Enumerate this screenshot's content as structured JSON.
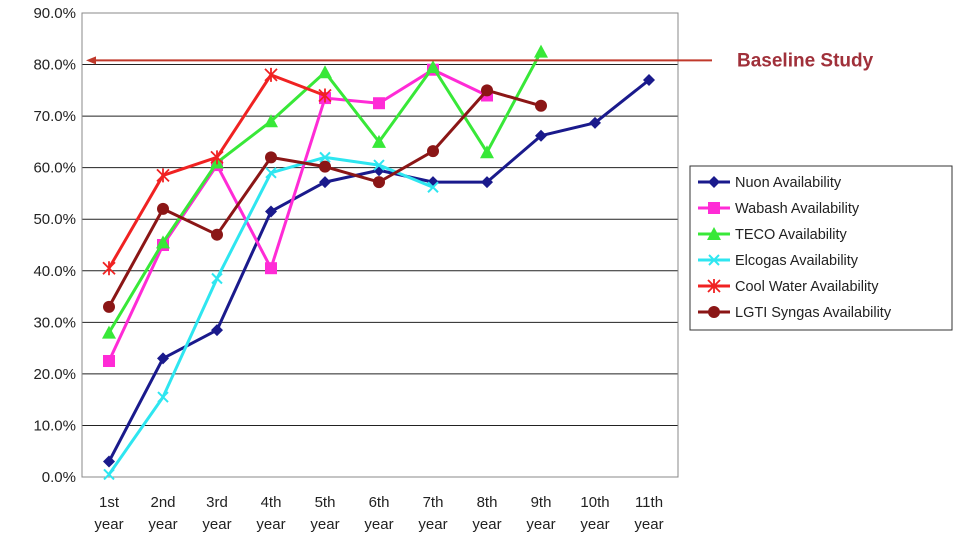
{
  "chart_data": {
    "type": "line",
    "categories": [
      "1st year",
      "2nd year",
      "3rd year",
      "4th year",
      "5th year",
      "6th year",
      "7th year",
      "8th year",
      "9th year",
      "10th year",
      "11th year"
    ],
    "ylim": [
      0,
      0.9
    ],
    "y_ticks": [
      "0.0%",
      "10.0%",
      "20.0%",
      "30.0%",
      "40.0%",
      "50.0%",
      "60.0%",
      "70.0%",
      "80.0%",
      "90.0%"
    ],
    "grid": "horizontal",
    "legend_position": "right",
    "series": [
      {
        "name": "Nuon Availability",
        "color": "#1a1a8c",
        "marker": "diamond",
        "values": [
          0.03,
          0.23,
          0.285,
          0.515,
          0.572,
          0.595,
          0.572,
          0.572,
          0.662,
          0.687,
          0.77
        ]
      },
      {
        "name": "Wabash Availability",
        "color": "#ff2bd6",
        "marker": "square",
        "values": [
          0.225,
          0.45,
          0.605,
          0.405,
          0.735,
          0.725,
          0.79,
          0.74,
          null,
          null,
          null
        ]
      },
      {
        "name": "TECO Availability",
        "color": "#38e838",
        "marker": "triangle",
        "values": [
          0.28,
          0.455,
          0.61,
          0.69,
          0.785,
          0.65,
          0.795,
          0.63,
          0.825,
          null,
          null
        ]
      },
      {
        "name": "Elcogas Availability",
        "color": "#2ee6f0",
        "marker": "x",
        "values": [
          0.005,
          0.155,
          0.385,
          0.59,
          0.62,
          0.605,
          0.562,
          null,
          null,
          null,
          null
        ]
      },
      {
        "name": "Cool Water Availability",
        "color": "#f02222",
        "marker": "star",
        "values": [
          0.405,
          0.585,
          0.62,
          0.78,
          0.74,
          null,
          null,
          null,
          null,
          null,
          null
        ]
      },
      {
        "name": "LGTI Syngas Availability",
        "color": "#8b1616",
        "marker": "circle",
        "values": [
          0.33,
          0.52,
          0.47,
          0.62,
          0.602,
          0.572,
          0.632,
          0.75,
          0.72,
          null,
          null
        ]
      }
    ],
    "annotation": {
      "text": "Baseline Study",
      "value": 0.808,
      "color": "#c0392b"
    }
  }
}
